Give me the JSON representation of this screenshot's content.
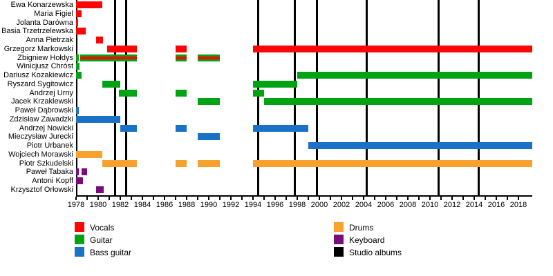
{
  "chart_data": {
    "type": "timeline",
    "subtype": "band-members-gantt",
    "title": "",
    "x_axis": {
      "unit": "year",
      "range": [
        1978,
        2019.25
      ],
      "tick_years": [
        1978,
        1980,
        1982,
        1984,
        1986,
        1988,
        1990,
        1992,
        1994,
        1996,
        1998,
        2000,
        2002,
        2004,
        2006,
        2008,
        2010,
        2012,
        2014,
        2016,
        2018
      ],
      "minor_tick_step": 1,
      "grid": false
    },
    "colors": {
      "vocals": "#fb0505",
      "guitar": "#00a313",
      "bass": "#1a72c8",
      "drums": "#f8a12e",
      "keyboard": "#780c78",
      "albums": "#000000"
    },
    "legend": [
      {
        "label": "Vocals",
        "role": "vocals",
        "column": 0,
        "row": 0
      },
      {
        "label": "Guitar",
        "role": "guitar",
        "column": 0,
        "row": 1
      },
      {
        "label": "Bass guitar",
        "role": "bass",
        "column": 0,
        "row": 2
      },
      {
        "label": "Drums",
        "role": "drums",
        "column": 1,
        "row": 0
      },
      {
        "label": "Keyboard",
        "role": "keyboard",
        "column": 1,
        "row": 1
      },
      {
        "label": "Studio albums",
        "role": "albums",
        "column": 1,
        "row": 2
      }
    ],
    "album_lines_years": [
      1981.55,
      1982.55,
      1994.45,
      1997.8,
      1999.75,
      2004.25,
      2010.8,
      2014.4
    ],
    "members": [
      {
        "name": "Ewa Konarzewska",
        "bars": [
          {
            "role": "vocals",
            "start": 1978,
            "end": 1980.4
          }
        ]
      },
      {
        "name": "Maria Figiel",
        "bars": [
          {
            "role": "vocals",
            "start": 1978,
            "end": 1978.5
          }
        ]
      },
      {
        "name": "Jolanta Darówna",
        "bars": [
          {
            "role": "vocals",
            "start": 1978,
            "end": 1978.2
          }
        ]
      },
      {
        "name": "Basia Trzetrzelewska",
        "bars": [
          {
            "role": "vocals",
            "start": 1978,
            "end": 1978.9
          }
        ]
      },
      {
        "name": "Anna Pietrzak",
        "bars": [
          {
            "role": "vocals",
            "start": 1979.8,
            "end": 1980.45
          }
        ]
      },
      {
        "name": "Grzegorz Markowski",
        "bars": [
          {
            "role": "vocals",
            "start": 1980.8,
            "end": 1983.5
          },
          {
            "role": "vocals",
            "start": 1987,
            "end": 1988
          },
          {
            "role": "vocals",
            "start": 1994,
            "end": 2019.25
          }
        ]
      },
      {
        "name": "Zbigniew Hołdys",
        "bars": [
          {
            "role": "guitar",
            "start": 1978,
            "end": 1978.25
          },
          {
            "role": "vocals+guitar",
            "start": 1978.4,
            "end": 1983.5
          },
          {
            "role": "vocals+guitar",
            "start": 1987,
            "end": 1988
          },
          {
            "role": "vocals+guitar",
            "start": 1989,
            "end": 1991
          }
        ]
      },
      {
        "name": "Winicjusz Chróst",
        "bars": [
          {
            "role": "guitar",
            "start": 1978,
            "end": 1978.3
          }
        ]
      },
      {
        "name": "Dariusz Kozakiewicz",
        "bars": [
          {
            "role": "guitar",
            "start": 1978,
            "end": 1978.5
          },
          {
            "role": "guitar",
            "start": 1998,
            "end": 2019.25
          }
        ]
      },
      {
        "name": "Ryszard Sygitowicz",
        "bars": [
          {
            "role": "guitar",
            "start": 1980.4,
            "end": 1982
          },
          {
            "role": "guitar",
            "start": 1994,
            "end": 1998
          }
        ]
      },
      {
        "name": "Andrzej Urny",
        "bars": [
          {
            "role": "guitar",
            "start": 1981.9,
            "end": 1983.5
          },
          {
            "role": "guitar",
            "start": 1987,
            "end": 1988
          },
          {
            "role": "guitar",
            "start": 1994,
            "end": 1995
          }
        ]
      },
      {
        "name": "Jacek Krzaklewski",
        "bars": [
          {
            "role": "guitar",
            "start": 1989,
            "end": 1991
          },
          {
            "role": "guitar",
            "start": 1995,
            "end": 2019.25
          }
        ]
      },
      {
        "name": "Paweł Dąbrowski",
        "bars": [
          {
            "role": "bass",
            "start": 1978,
            "end": 1978.25
          }
        ]
      },
      {
        "name": "Zdzisław Zawadzki",
        "bars": [
          {
            "role": "bass",
            "start": 1978,
            "end": 1982
          }
        ]
      },
      {
        "name": "Andrzej Nowicki",
        "bars": [
          {
            "role": "bass",
            "start": 1982,
            "end": 1983.5
          },
          {
            "role": "bass",
            "start": 1987,
            "end": 1988
          },
          {
            "role": "bass",
            "start": 1994,
            "end": 1999
          }
        ]
      },
      {
        "name": "Mieczysław Jurecki",
        "bars": [
          {
            "role": "bass",
            "start": 1989,
            "end": 1991
          }
        ]
      },
      {
        "name": "Piotr Urbanek",
        "bars": [
          {
            "role": "bass",
            "start": 1999,
            "end": 2019.25
          }
        ]
      },
      {
        "name": "Wojciech Morawski",
        "bars": [
          {
            "role": "drums",
            "start": 1978,
            "end": 1980.35
          }
        ]
      },
      {
        "name": "Piotr Szkudelski",
        "bars": [
          {
            "role": "drums",
            "start": 1980.35,
            "end": 1983.5
          },
          {
            "role": "drums",
            "start": 1987,
            "end": 1988
          },
          {
            "role": "drums",
            "start": 1989,
            "end": 1991
          },
          {
            "role": "drums",
            "start": 1994,
            "end": 2019.25
          }
        ]
      },
      {
        "name": "Paweł Tabaka",
        "bars": [
          {
            "role": "keyboard",
            "start": 1978,
            "end": 1978.25
          },
          {
            "role": "keyboard",
            "start": 1978.5,
            "end": 1979
          }
        ]
      },
      {
        "name": "Antoni Kopff",
        "bars": [
          {
            "role": "keyboard",
            "start": 1978,
            "end": 1978.6
          }
        ]
      },
      {
        "name": "Krzysztof Orłowski",
        "bars": [
          {
            "role": "keyboard",
            "start": 1979.8,
            "end": 1980.5
          }
        ]
      }
    ]
  }
}
